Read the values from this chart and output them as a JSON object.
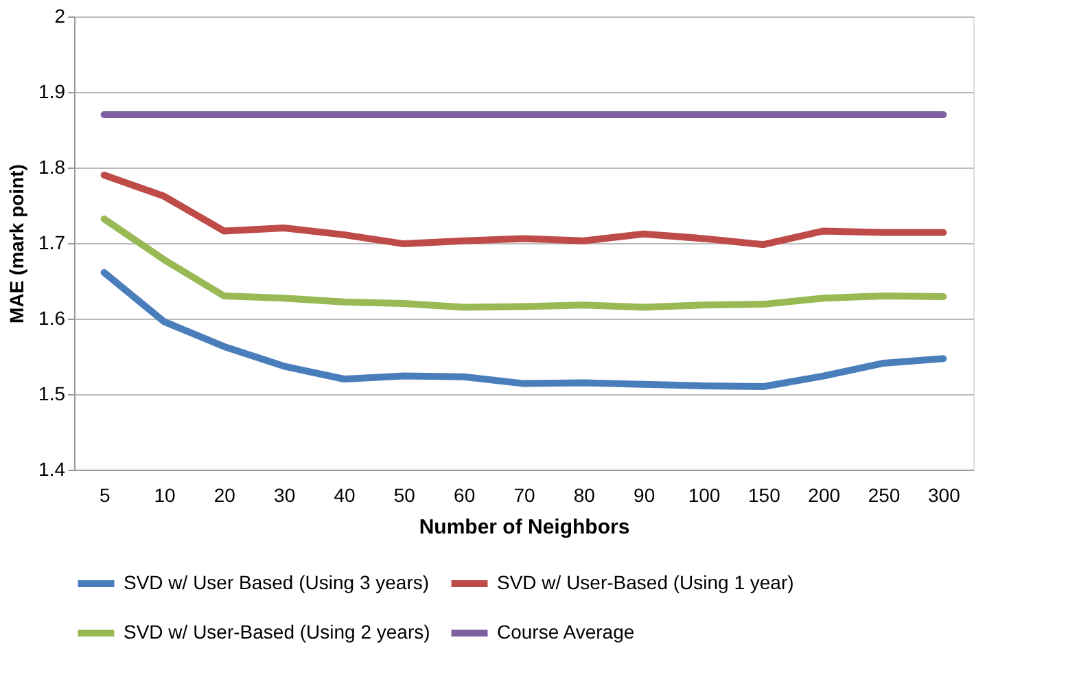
{
  "chart_data": {
    "type": "line",
    "xlabel": "Number of Neighbors",
    "ylabel": "MAE (mark point)",
    "categories": [
      "5",
      "10",
      "20",
      "30",
      "40",
      "50",
      "60",
      "70",
      "80",
      "90",
      "100",
      "150",
      "200",
      "250",
      "300"
    ],
    "series": [
      {
        "name": "SVD w/ User Based (Using 3 years)",
        "color": "#4a7ebb",
        "values": [
          1.661,
          1.596,
          1.563,
          1.537,
          1.52,
          1.524,
          1.523,
          1.514,
          1.515,
          1.513,
          1.511,
          1.51,
          1.524,
          1.541,
          1.547
        ]
      },
      {
        "name": "SVD w/ User-Based (Using 1 year)",
        "color": "#be4b48",
        "values": [
          1.79,
          1.762,
          1.716,
          1.72,
          1.711,
          1.699,
          1.703,
          1.706,
          1.703,
          1.712,
          1.706,
          1.698,
          1.716,
          1.714,
          1.714
        ]
      },
      {
        "name": "SVD w/ User-Based (Using 2 years)",
        "color": "#98b954",
        "values": [
          1.732,
          1.678,
          1.63,
          1.627,
          1.622,
          1.62,
          1.615,
          1.616,
          1.618,
          1.615,
          1.618,
          1.619,
          1.627,
          1.63,
          1.629
        ]
      },
      {
        "name": "Course Average",
        "color": "#7d60a0",
        "values": [
          1.87,
          1.87,
          1.87,
          1.87,
          1.87,
          1.87,
          1.87,
          1.87,
          1.87,
          1.87,
          1.87,
          1.87,
          1.87,
          1.87,
          1.87
        ]
      }
    ],
    "ylim": [
      1.4,
      2
    ],
    "yticks": [
      1.4,
      1.5,
      1.6,
      1.7,
      1.8,
      1.9,
      2
    ],
    "grid": "y",
    "legend": "bottom",
    "marker": "none",
    "line_style": "solid"
  }
}
